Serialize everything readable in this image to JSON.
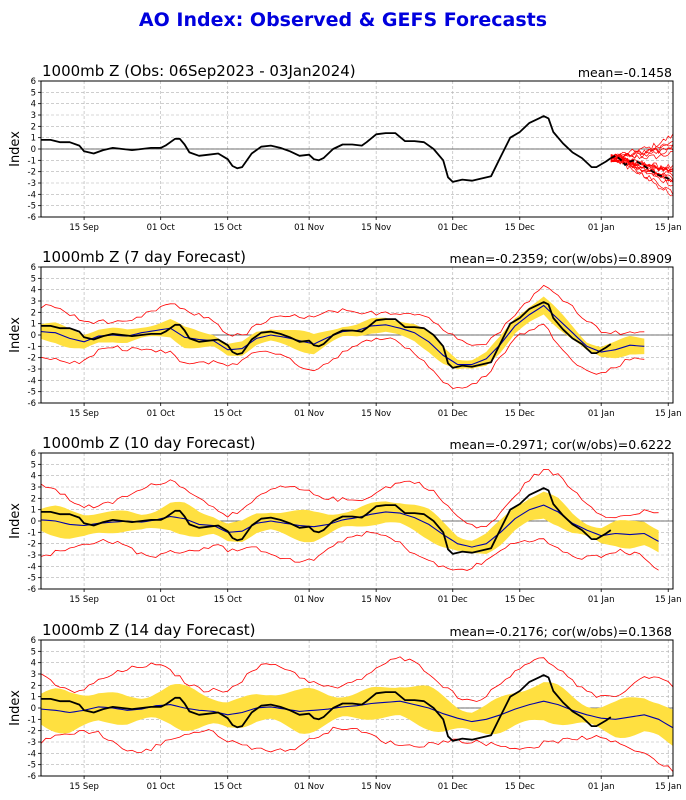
{
  "title": "AO Index: Observed & GEFS Forecasts",
  "colors": {
    "title": "#0000dd",
    "observed": "#000000",
    "ensemble_mean": "#0000aa",
    "members": "#ff0000",
    "spread": "#ffe040",
    "grid": "#b0b0b0"
  },
  "chart_data": [
    {
      "type": "line",
      "title": "1000mb Z (Obs: 06Sep2023 - 03Jan2024)",
      "stat": "mean=-0.1458",
      "ylabel": "Index",
      "xlabel": "",
      "x_start": "06Sep2023",
      "x_ticks": [
        "15 Sep",
        "01 Oct",
        "15 Oct",
        "01 Nov",
        "15 Nov",
        "01 Dec",
        "15 Dec",
        "01 Jan",
        "15 Jan"
      ],
      "x_tick_days": [
        9,
        25,
        39,
        56,
        70,
        86,
        100,
        117,
        131
      ],
      "x_range_days": [
        0,
        132
      ],
      "ylim": [
        -6,
        6
      ],
      "yticks": [
        -6,
        -5,
        -4,
        -3,
        -2,
        -1,
        0,
        1,
        2,
        3,
        4,
        5,
        6
      ],
      "grid": true,
      "observed": [
        [
          0,
          0.8
        ],
        [
          2,
          0.8
        ],
        [
          4,
          0.6
        ],
        [
          6,
          0.6
        ],
        [
          8,
          0.3
        ],
        [
          9,
          -0.2
        ],
        [
          11,
          -0.4
        ],
        [
          13,
          -0.1
        ],
        [
          15,
          0.1
        ],
        [
          17,
          0.0
        ],
        [
          19,
          -0.1
        ],
        [
          21,
          0.0
        ],
        [
          23,
          0.1
        ],
        [
          25,
          0.1
        ],
        [
          26,
          0.3
        ],
        [
          28,
          0.9
        ],
        [
          29,
          0.9
        ],
        [
          30,
          0.4
        ],
        [
          31,
          -0.3
        ],
        [
          33,
          -0.6
        ],
        [
          35,
          -0.5
        ],
        [
          37,
          -0.4
        ],
        [
          39,
          -0.9
        ],
        [
          40,
          -1.5
        ],
        [
          41,
          -1.7
        ],
        [
          42,
          -1.6
        ],
        [
          44,
          -0.4
        ],
        [
          46,
          0.2
        ],
        [
          48,
          0.3
        ],
        [
          50,
          0.1
        ],
        [
          52,
          -0.2
        ],
        [
          54,
          -0.6
        ],
        [
          56,
          -0.5
        ],
        [
          57,
          -0.9
        ],
        [
          58,
          -1.0
        ],
        [
          59,
          -0.8
        ],
        [
          61,
          0.0
        ],
        [
          63,
          0.4
        ],
        [
          65,
          0.4
        ],
        [
          67,
          0.3
        ],
        [
          68,
          0.6
        ],
        [
          70,
          1.3
        ],
        [
          72,
          1.4
        ],
        [
          74,
          1.4
        ],
        [
          76,
          0.7
        ],
        [
          78,
          0.7
        ],
        [
          80,
          0.6
        ],
        [
          82,
          0.0
        ],
        [
          84,
          -1.0
        ],
        [
          85,
          -2.5
        ],
        [
          86,
          -2.9
        ],
        [
          88,
          -2.7
        ],
        [
          90,
          -2.8
        ],
        [
          92,
          -2.6
        ],
        [
          94,
          -2.4
        ],
        [
          96,
          -0.7
        ],
        [
          98,
          1.0
        ],
        [
          100,
          1.5
        ],
        [
          102,
          2.3
        ],
        [
          104,
          2.7
        ],
        [
          105,
          2.9
        ],
        [
          106,
          2.7
        ],
        [
          107,
          1.5
        ],
        [
          109,
          0.5
        ],
        [
          111,
          -0.3
        ],
        [
          113,
          -0.8
        ],
        [
          115,
          -1.6
        ],
        [
          116,
          -1.6
        ],
        [
          118,
          -1.1
        ],
        [
          119,
          -0.8
        ]
      ],
      "forecast_mean": [
        [
          119,
          -0.8
        ],
        [
          120,
          -0.6
        ],
        [
          121,
          -0.9
        ],
        [
          122,
          -1.4
        ],
        [
          123,
          -1.1
        ],
        [
          124,
          -1.0
        ],
        [
          126,
          -1.5
        ],
        [
          127,
          -1.8
        ],
        [
          129,
          -2.3
        ],
        [
          131,
          -2.6
        ],
        [
          132,
          -2.7
        ]
      ],
      "members_spread": [
        [
          119,
          -0.6,
          -1.0
        ],
        [
          121,
          -0.4,
          -1.2
        ],
        [
          123,
          -0.2,
          -1.8
        ],
        [
          125,
          0.2,
          -2.4
        ],
        [
          127,
          0.4,
          -2.9
        ],
        [
          129,
          0.9,
          -3.6
        ],
        [
          131,
          1.5,
          -4.2
        ],
        [
          132,
          1.8,
          -4.6
        ]
      ]
    },
    {
      "type": "line",
      "title": "1000mb Z (7 day Forecast)",
      "stat": "mean=-0.2359; cor(w/obs)=0.8909",
      "ylabel": "Index",
      "x_ticks": [
        "15 Sep",
        "01 Oct",
        "15 Oct",
        "01 Nov",
        "15 Nov",
        "01 Dec",
        "15 Dec",
        "01 Jan",
        "15 Jan"
      ],
      "x_tick_days": [
        9,
        25,
        39,
        56,
        70,
        86,
        100,
        117,
        131
      ],
      "x_range_days": [
        0,
        132
      ],
      "ylim": [
        -6,
        6
      ],
      "yticks": [
        -6,
        -5,
        -4,
        -3,
        -2,
        -1,
        0,
        1,
        2,
        3,
        4,
        5,
        6
      ],
      "grid": true,
      "observed_to_day": 119,
      "forecast_end_day": 126,
      "ensemble_mean": [
        [
          0,
          0.3
        ],
        [
          3,
          0.2
        ],
        [
          6,
          -0.3
        ],
        [
          9,
          -0.6
        ],
        [
          12,
          -0.1
        ],
        [
          15,
          0.0
        ],
        [
          18,
          -0.1
        ],
        [
          21,
          0.2
        ],
        [
          24,
          0.4
        ],
        [
          27,
          0.6
        ],
        [
          30,
          -0.2
        ],
        [
          33,
          -0.4
        ],
        [
          36,
          -0.5
        ],
        [
          39,
          -1.3
        ],
        [
          42,
          -1.2
        ],
        [
          45,
          -0.3
        ],
        [
          48,
          0.0
        ],
        [
          51,
          -0.2
        ],
        [
          54,
          -0.5
        ],
        [
          57,
          -0.8
        ],
        [
          60,
          -0.2
        ],
        [
          63,
          0.3
        ],
        [
          66,
          0.4
        ],
        [
          69,
          0.8
        ],
        [
          72,
          0.9
        ],
        [
          75,
          0.6
        ],
        [
          78,
          0.2
        ],
        [
          81,
          -0.6
        ],
        [
          84,
          -1.8
        ],
        [
          87,
          -2.6
        ],
        [
          90,
          -2.6
        ],
        [
          93,
          -2.1
        ],
        [
          96,
          -0.8
        ],
        [
          99,
          0.8
        ],
        [
          102,
          1.8
        ],
        [
          105,
          2.6
        ],
        [
          108,
          1.4
        ],
        [
          111,
          0.2
        ],
        [
          114,
          -1.0
        ],
        [
          117,
          -1.5
        ],
        [
          120,
          -1.3
        ],
        [
          123,
          -0.9
        ],
        [
          126,
          -1.0
        ]
      ],
      "spread_half": 0.8,
      "member_half": 2.0
    },
    {
      "type": "line",
      "title": "1000mb Z (10 day Forecast)",
      "stat": "mean=-0.2971; cor(w/obs)=0.6222",
      "ylabel": "Index",
      "x_ticks": [
        "15 Sep",
        "01 Oct",
        "15 Oct",
        "01 Nov",
        "15 Nov",
        "01 Dec",
        "15 Dec",
        "01 Jan",
        "15 Jan"
      ],
      "x_tick_days": [
        9,
        25,
        39,
        56,
        70,
        86,
        100,
        117,
        131
      ],
      "x_range_days": [
        0,
        132
      ],
      "ylim": [
        -6,
        6
      ],
      "yticks": [
        -6,
        -5,
        -4,
        -3,
        -2,
        -1,
        0,
        1,
        2,
        3,
        4,
        5,
        6
      ],
      "grid": true,
      "observed_to_day": 119,
      "forecast_end_day": 129,
      "ensemble_mean": [
        [
          0,
          0.1
        ],
        [
          3,
          0.0
        ],
        [
          6,
          -0.3
        ],
        [
          9,
          -0.4
        ],
        [
          12,
          -0.2
        ],
        [
          15,
          -0.1
        ],
        [
          18,
          0.0
        ],
        [
          21,
          -0.1
        ],
        [
          24,
          0.1
        ],
        [
          27,
          0.4
        ],
        [
          30,
          0.2
        ],
        [
          33,
          -0.3
        ],
        [
          36,
          -0.4
        ],
        [
          39,
          -1.0
        ],
        [
          42,
          -0.9
        ],
        [
          45,
          -0.2
        ],
        [
          48,
          0.0
        ],
        [
          51,
          -0.2
        ],
        [
          54,
          -0.4
        ],
        [
          57,
          -0.5
        ],
        [
          60,
          -0.3
        ],
        [
          63,
          0.1
        ],
        [
          66,
          0.3
        ],
        [
          69,
          0.6
        ],
        [
          72,
          0.8
        ],
        [
          75,
          0.7
        ],
        [
          78,
          0.3
        ],
        [
          81,
          -0.3
        ],
        [
          84,
          -1.2
        ],
        [
          87,
          -2.0
        ],
        [
          90,
          -2.3
        ],
        [
          93,
          -2.0
        ],
        [
          96,
          -1.0
        ],
        [
          99,
          0.2
        ],
        [
          102,
          1.0
        ],
        [
          105,
          1.4
        ],
        [
          108,
          0.8
        ],
        [
          111,
          -0.2
        ],
        [
          114,
          -0.8
        ],
        [
          117,
          -1.3
        ],
        [
          120,
          -1.1
        ],
        [
          123,
          -1.2
        ],
        [
          126,
          -1.1
        ],
        [
          129,
          -1.8
        ]
      ],
      "spread_half": 1.2,
      "member_half": 2.8
    },
    {
      "type": "line",
      "title": "1000mb Z (14 day Forecast)",
      "stat": "mean=-0.2176; cor(w/obs)=0.1368",
      "ylabel": "Index",
      "x_ticks": [
        "15 Sep",
        "01 Oct",
        "15 Oct",
        "01 Nov",
        "15 Nov",
        "01 Dec",
        "15 Dec",
        "01 Jan",
        "15 Jan"
      ],
      "x_tick_days": [
        9,
        25,
        39,
        56,
        70,
        86,
        100,
        117,
        131
      ],
      "x_range_days": [
        0,
        132
      ],
      "ylim": [
        -6,
        6
      ],
      "yticks": [
        -6,
        -5,
        -4,
        -3,
        -2,
        -1,
        0,
        1,
        2,
        3,
        4,
        5,
        6
      ],
      "grid": true,
      "observed_to_day": 119,
      "forecast_end_day": 133,
      "ensemble_mean": [
        [
          0,
          -0.1
        ],
        [
          3,
          -0.2
        ],
        [
          6,
          -0.4
        ],
        [
          9,
          -0.2
        ],
        [
          12,
          0.1
        ],
        [
          15,
          0.0
        ],
        [
          18,
          -0.2
        ],
        [
          21,
          -0.1
        ],
        [
          24,
          0.2
        ],
        [
          27,
          0.3
        ],
        [
          30,
          0.0
        ],
        [
          33,
          -0.2
        ],
        [
          36,
          -0.3
        ],
        [
          39,
          -0.6
        ],
        [
          42,
          -0.4
        ],
        [
          45,
          0.0
        ],
        [
          48,
          0.1
        ],
        [
          51,
          -0.1
        ],
        [
          54,
          -0.3
        ],
        [
          57,
          -0.2
        ],
        [
          60,
          -0.1
        ],
        [
          63,
          0.1
        ],
        [
          66,
          0.2
        ],
        [
          69,
          0.4
        ],
        [
          72,
          0.5
        ],
        [
          75,
          0.6
        ],
        [
          78,
          0.3
        ],
        [
          81,
          0.0
        ],
        [
          84,
          -0.5
        ],
        [
          87,
          -0.9
        ],
        [
          90,
          -1.2
        ],
        [
          93,
          -1.0
        ],
        [
          96,
          -0.6
        ],
        [
          99,
          -0.1
        ],
        [
          102,
          0.3
        ],
        [
          105,
          0.6
        ],
        [
          108,
          0.3
        ],
        [
          111,
          -0.2
        ],
        [
          114,
          -0.6
        ],
        [
          117,
          -0.9
        ],
        [
          120,
          -1.0
        ],
        [
          123,
          -0.8
        ],
        [
          126,
          -0.6
        ],
        [
          129,
          -1.0
        ],
        [
          133,
          -2.0
        ]
      ],
      "spread_half": 1.7,
      "member_half": 3.3
    }
  ]
}
